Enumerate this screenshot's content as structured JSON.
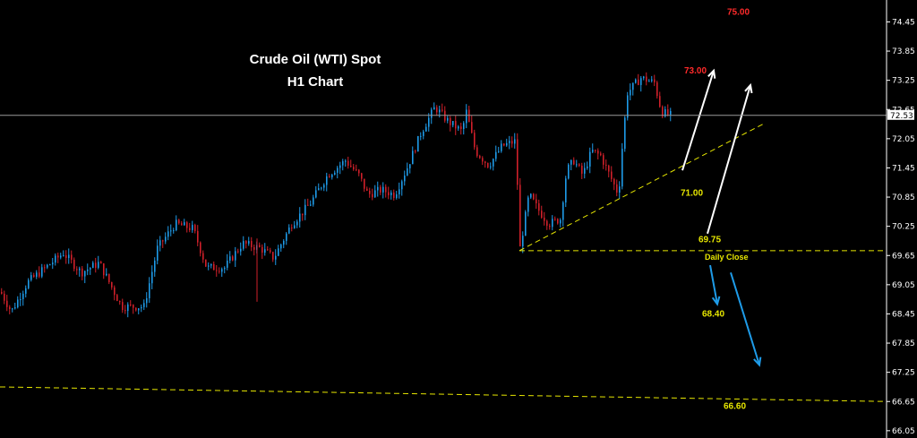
{
  "chart_data": {
    "type": "candlestick",
    "title": "Crude Oil (WTI) Spot",
    "subtitle": "H1 Chart",
    "ylim": [
      65.9,
      74.9
    ],
    "y_ticks": [
      "74.45",
      "73.85",
      "73.25",
      "72.65",
      "72.05",
      "71.45",
      "70.85",
      "70.25",
      "69.65",
      "69.05",
      "68.45",
      "67.85",
      "67.25",
      "66.65",
      "66.05"
    ],
    "current_price": {
      "value": 72.53,
      "label": "72.53"
    },
    "colors": {
      "up": "#1e9be8",
      "down": "#d0202a",
      "level": "#e6e600",
      "target_up": "#ff2a2a",
      "arrow_up": "#ffffff",
      "arrow_down": "#1e9be8",
      "price_line": "#9a9a9a"
    },
    "path_points": [
      [
        0,
        68.9
      ],
      [
        12,
        68.5
      ],
      [
        30,
        69.1
      ],
      [
        50,
        69.4
      ],
      [
        70,
        69.7
      ],
      [
        90,
        69.3
      ],
      [
        110,
        69.5
      ],
      [
        135,
        68.6
      ],
      [
        160,
        68.6
      ],
      [
        175,
        69.8
      ],
      [
        195,
        70.3
      ],
      [
        215,
        70.2
      ],
      [
        230,
        69.4
      ],
      [
        250,
        69.4
      ],
      [
        270,
        69.9
      ],
      [
        290,
        69.8
      ],
      [
        305,
        69.6
      ],
      [
        325,
        70.3
      ],
      [
        345,
        70.7
      ],
      [
        365,
        71.3
      ],
      [
        385,
        71.6
      ],
      [
        400,
        71.3
      ],
      [
        410,
        70.9
      ],
      [
        425,
        71.0
      ],
      [
        440,
        70.9
      ],
      [
        455,
        71.5
      ],
      [
        470,
        72.2
      ],
      [
        485,
        72.7
      ],
      [
        500,
        72.4
      ],
      [
        515,
        72.2
      ],
      [
        520,
        72.6
      ],
      [
        530,
        71.8
      ],
      [
        545,
        71.5
      ],
      [
        560,
        71.9
      ],
      [
        575,
        72.0
      ],
      [
        580,
        69.8
      ],
      [
        590,
        70.9
      ],
      [
        600,
        70.6
      ],
      [
        612,
        70.3
      ],
      [
        625,
        70.4
      ],
      [
        632,
        71.4
      ],
      [
        640,
        71.6
      ],
      [
        650,
        71.3
      ],
      [
        660,
        71.8
      ],
      [
        670,
        71.7
      ],
      [
        680,
        71.3
      ],
      [
        690,
        70.9
      ],
      [
        695,
        72.1
      ],
      [
        700,
        73.0
      ],
      [
        715,
        73.3
      ],
      [
        730,
        73.2
      ],
      [
        738,
        72.6
      ],
      [
        748,
        72.53
      ]
    ],
    "lines": [
      {
        "kind": "trendline",
        "style": "dashed",
        "from": [
          580,
          69.75
        ],
        "to": [
          852,
          72.35
        ]
      },
      {
        "kind": "horizontal",
        "style": "dashed",
        "from": [
          580,
          69.75
        ],
        "to": [
          990,
          69.75
        ]
      },
      {
        "kind": "trendline",
        "style": "dashed",
        "from": [
          0,
          66.95
        ],
        "to": [
          990,
          66.65
        ]
      }
    ],
    "arrows": [
      {
        "dir": "up",
        "from": [
          762,
          71.4
        ],
        "to": [
          797,
          73.45
        ]
      },
      {
        "dir": "up",
        "from": [
          790,
          70.1
        ],
        "to": [
          838,
          73.15
        ]
      },
      {
        "dir": "down",
        "from": [
          793,
          69.45
        ],
        "to": [
          801,
          68.65
        ]
      },
      {
        "dir": "down",
        "from": [
          816,
          69.3
        ],
        "to": [
          848,
          67.4
        ]
      }
    ],
    "annotations": [
      {
        "text": "75.00",
        "x": 812,
        "y": 74.65,
        "role": "target-up"
      },
      {
        "text": "73.00",
        "x": 764,
        "y": 73.45,
        "role": "target-up"
      },
      {
        "text": "71.00",
        "x": 760,
        "y": 70.93,
        "role": "level"
      },
      {
        "text": "69.75",
        "x": 780,
        "y": 69.98,
        "role": "level"
      },
      {
        "text": "Daily Close",
        "x": 787,
        "y": 69.62,
        "role": "level-small"
      },
      {
        "text": "68.40",
        "x": 784,
        "y": 68.45,
        "role": "level"
      },
      {
        "text": "66.60",
        "x": 808,
        "y": 66.55,
        "role": "level"
      }
    ]
  }
}
